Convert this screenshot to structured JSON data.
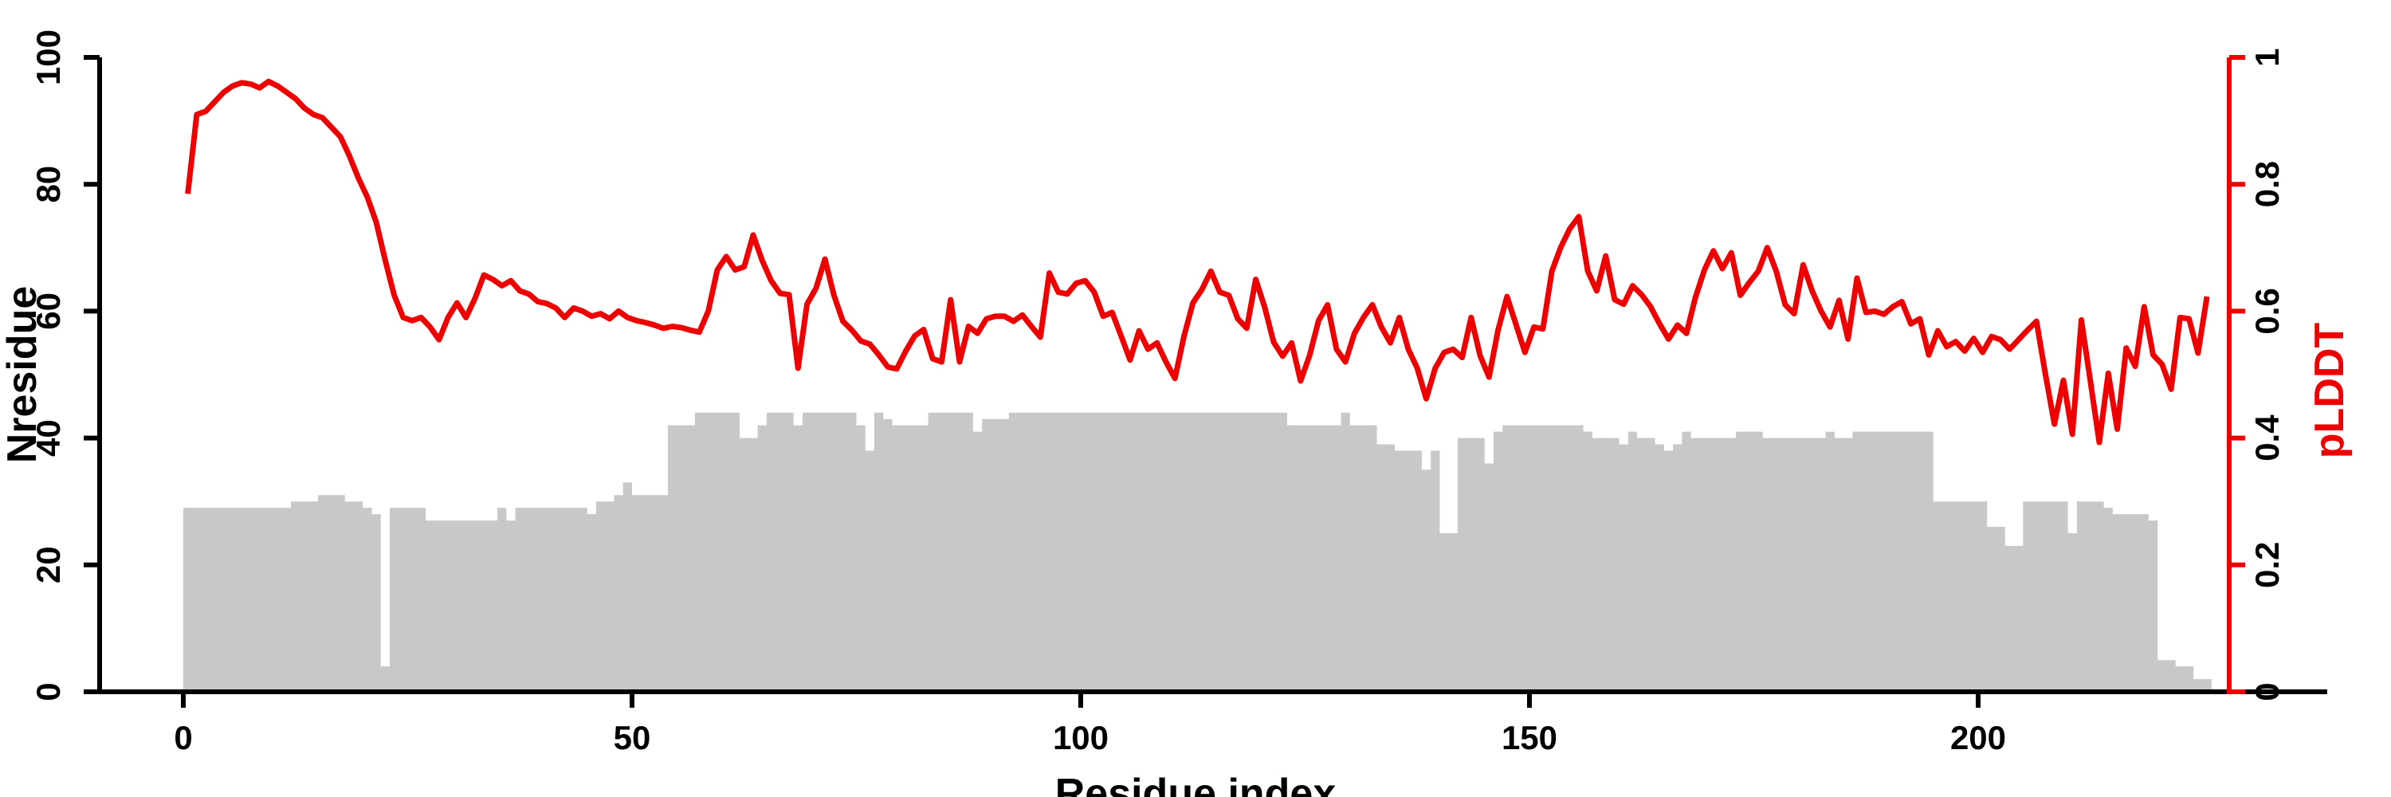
{
  "chart_data": {
    "type": "line",
    "subtype": "dual-axis step-area (left) + line (right)",
    "title": "",
    "xlabel": "Residue index",
    "ylabel_left": "Nresidue",
    "ylabel_right": "pLDDT",
    "x_ticks": [
      0,
      50,
      100,
      150,
      200
    ],
    "y_left_ticks": [
      0,
      20,
      40,
      60,
      80,
      100
    ],
    "y_right_ticks": [
      0,
      0.2,
      0.4,
      0.6,
      0.8,
      1
    ],
    "xlim": [
      0,
      228
    ],
    "ylim_left": [
      0,
      100
    ],
    "ylim_right": [
      0,
      1
    ],
    "grid": false,
    "legend": "none",
    "colors": {
      "line": "#ee0000",
      "area": "#c8c8c8",
      "axis_left": "#000000",
      "axis_right": "#ee0000",
      "background": "#ffffff"
    },
    "x_start_residue": 0,
    "series": [
      {
        "name": "Nresidue",
        "render": "area",
        "axis": "left",
        "values": [
          29,
          29,
          29,
          29,
          29,
          29,
          29,
          29,
          29,
          29,
          29,
          29,
          30,
          30,
          30,
          31,
          31,
          31,
          30,
          30,
          29,
          28,
          4,
          29,
          29,
          29,
          29,
          27,
          27,
          27,
          27,
          27,
          27,
          27,
          27,
          29,
          27,
          29,
          29,
          29,
          29,
          29,
          29,
          29,
          29,
          28,
          30,
          30,
          31,
          33,
          31,
          31,
          31,
          31,
          42,
          42,
          42,
          44,
          44,
          44,
          44,
          44,
          40,
          40,
          42,
          44,
          44,
          44,
          42,
          44,
          44,
          44,
          44,
          44,
          44,
          42,
          38,
          44,
          43,
          42,
          42,
          42,
          42,
          44,
          44,
          44,
          44,
          44,
          41,
          43,
          43,
          43,
          44,
          44,
          44,
          44,
          44,
          44,
          44,
          44,
          44,
          44,
          44,
          44,
          44,
          44,
          44,
          44,
          44,
          44,
          44,
          44,
          44,
          44,
          44,
          44,
          44,
          44,
          44,
          44,
          44,
          44,
          44,
          42,
          42,
          42,
          42,
          42,
          42,
          44,
          42,
          42,
          42,
          39,
          39,
          38,
          38,
          38,
          35,
          38,
          25,
          25,
          40,
          40,
          40,
          36,
          41,
          42,
          42,
          42,
          42,
          42,
          42,
          42,
          42,
          42,
          41,
          40,
          40,
          40,
          39,
          41,
          40,
          40,
          39,
          38,
          39,
          41,
          40,
          40,
          40,
          40,
          40,
          41,
          41,
          41,
          40,
          40,
          40,
          40,
          40,
          40,
          40,
          41,
          40,
          40,
          41,
          41,
          41,
          41,
          41,
          41,
          41,
          41,
          41,
          30,
          30,
          30,
          30,
          30,
          30,
          26,
          26,
          23,
          23,
          30,
          30,
          30,
          30,
          30,
          25,
          30,
          30,
          30,
          29,
          28,
          28,
          28,
          28,
          27,
          5,
          5,
          4,
          4,
          2,
          2
        ]
      },
      {
        "name": "pLDDT",
        "render": "line",
        "axis": "right",
        "values": [
          0.785,
          0.91,
          0.915,
          0.93,
          0.945,
          0.955,
          0.96,
          0.958,
          0.952,
          0.962,
          0.955,
          0.945,
          0.935,
          0.92,
          0.91,
          0.905,
          0.89,
          0.875,
          0.845,
          0.81,
          0.78,
          0.74,
          0.68,
          0.625,
          0.59,
          0.585,
          0.59,
          0.575,
          0.555,
          0.59,
          0.613,
          0.59,
          0.62,
          0.657,
          0.65,
          0.64,
          0.648,
          0.632,
          0.627,
          0.615,
          0.612,
          0.605,
          0.59,
          0.605,
          0.6,
          0.592,
          0.596,
          0.588,
          0.6,
          0.59,
          0.585,
          0.582,
          0.578,
          0.573,
          0.576,
          0.574,
          0.57,
          0.567,
          0.6,
          0.665,
          0.686,
          0.665,
          0.67,
          0.72,
          0.68,
          0.648,
          0.628,
          0.626,
          0.51,
          0.611,
          0.636,
          0.682,
          0.625,
          0.584,
          0.57,
          0.553,
          0.548,
          0.531,
          0.512,
          0.509,
          0.537,
          0.561,
          0.571,
          0.525,
          0.52,
          0.618,
          0.52,
          0.576,
          0.565,
          0.588,
          0.592,
          0.592,
          0.584,
          0.594,
          0.576,
          0.559,
          0.66,
          0.63,
          0.627,
          0.644,
          0.648,
          0.63,
          0.592,
          0.598,
          0.561,
          0.523,
          0.569,
          0.54,
          0.55,
          0.52,
          0.494,
          0.56,
          0.613,
          0.634,
          0.663,
          0.63,
          0.625,
          0.588,
          0.573,
          0.65,
          0.606,
          0.551,
          0.529,
          0.55,
          0.49,
          0.53,
          0.585,
          0.61,
          0.54,
          0.52,
          0.565,
          0.59,
          0.61,
          0.575,
          0.55,
          0.59,
          0.54,
          0.51,
          0.462,
          0.51,
          0.535,
          0.54,
          0.527,
          0.59,
          0.53,
          0.496,
          0.57,
          0.623,
          0.579,
          0.535,
          0.575,
          0.572,
          0.663,
          0.701,
          0.73,
          0.749,
          0.663,
          0.632,
          0.687,
          0.618,
          0.611,
          0.64,
          0.626,
          0.607,
          0.58,
          0.556,
          0.578,
          0.565,
          0.622,
          0.665,
          0.695,
          0.667,
          0.692,
          0.625,
          0.645,
          0.663,
          0.7,
          0.663,
          0.61,
          0.596,
          0.673,
          0.632,
          0.6,
          0.575,
          0.617,
          0.556,
          0.652,
          0.598,
          0.6,
          0.595,
          0.607,
          0.615,
          0.58,
          0.588,
          0.531,
          0.569,
          0.544,
          0.552,
          0.537,
          0.557,
          0.535,
          0.56,
          0.555,
          0.54,
          0.555,
          0.57,
          0.584,
          0.5,
          0.422,
          0.491,
          0.406,
          0.586,
          0.49,
          0.393,
          0.502,
          0.414,
          0.542,
          0.513,
          0.607,
          0.531,
          0.516,
          0.477,
          0.59,
          0.588,
          0.534,
          0.623
        ]
      }
    ]
  }
}
